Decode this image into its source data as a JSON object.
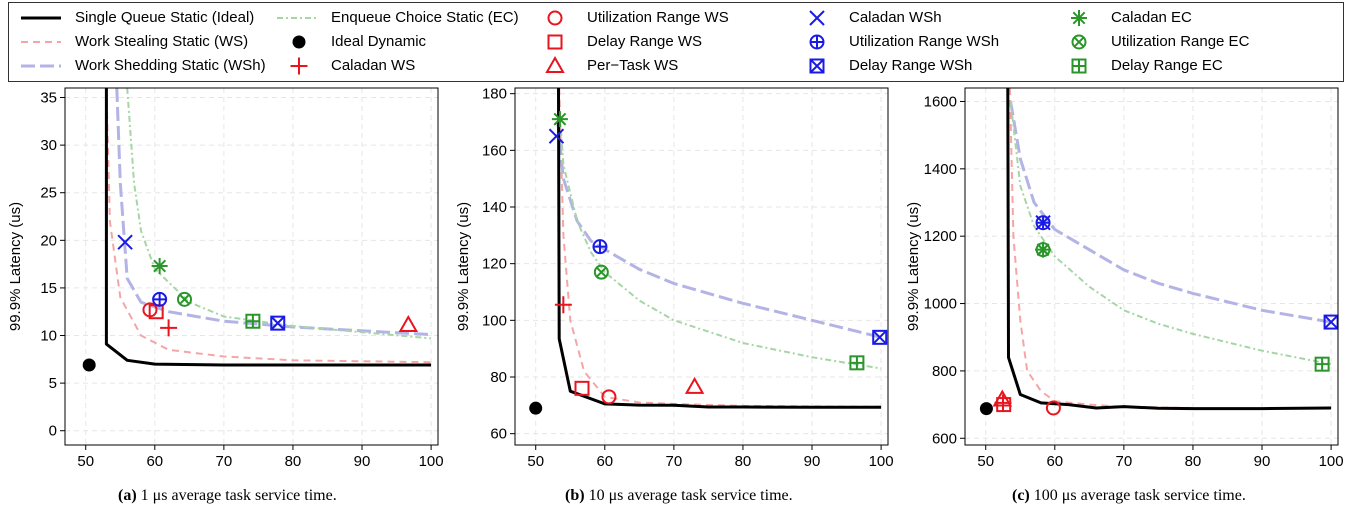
{
  "legend": [
    {
      "label": "Single Queue Static (Ideal)",
      "kind": "line",
      "color": "#000000",
      "dash": "",
      "width": 3
    },
    {
      "label": "Work Stealing Static (WS)",
      "kind": "line",
      "color": "#f4a6a6",
      "dash": "7,5",
      "width": 2
    },
    {
      "label": "Work Shedding Static (WSh)",
      "kind": "line",
      "color": "#b3b3e6",
      "dash": "14,5",
      "width": 3
    },
    {
      "label": "Enqueue Choice Static (EC)",
      "kind": "line",
      "color": "#a6d6a6",
      "dash": "6,3,2,3",
      "width": 2
    },
    {
      "label": "Ideal Dynamic",
      "kind": "marker",
      "marker": "dot",
      "color": "#000000"
    },
    {
      "label": "Caladan WS",
      "kind": "marker",
      "marker": "plus",
      "color": "#e8141e"
    },
    {
      "label": "Utilization Range WS",
      "kind": "marker",
      "marker": "circle",
      "color": "#e8141e"
    },
    {
      "label": "Delay Range WS",
      "kind": "marker",
      "marker": "square",
      "color": "#e8141e"
    },
    {
      "label": "Per−Task WS",
      "kind": "marker",
      "marker": "triangle",
      "color": "#e8141e"
    },
    {
      "label": "Caladan WSh",
      "kind": "marker",
      "marker": "x",
      "color": "#1a1ae6"
    },
    {
      "label": "Utilization Range WSh",
      "kind": "marker",
      "marker": "circleplus",
      "color": "#1a1ae6"
    },
    {
      "label": "Delay Range WSh",
      "kind": "marker",
      "marker": "squarex",
      "color": "#1a1ae6"
    },
    {
      "label": "Caladan EC",
      "kind": "marker",
      "marker": "star",
      "color": "#2a962a"
    },
    {
      "label": "Utilization Range EC",
      "kind": "marker",
      "marker": "circlex",
      "color": "#2a962a"
    },
    {
      "label": "Delay Range EC",
      "kind": "marker",
      "marker": "squareplus",
      "color": "#2a962a"
    }
  ],
  "chart_data": [
    {
      "type": "line",
      "caption_label": "(a)",
      "caption_text": "1 μs average task service time.",
      "xlabel": "CPU Utilization (% of total cores)",
      "ylabel": "99.9% Latency (us)",
      "xlim": [
        47,
        101
      ],
      "ylim": [
        -1.5,
        36
      ],
      "xticks": [
        50,
        60,
        70,
        80,
        90,
        100
      ],
      "yticks": [
        0,
        5,
        10,
        15,
        20,
        25,
        30,
        35
      ],
      "grid": true,
      "series": [
        {
          "name": "Single Queue Static (Ideal)",
          "x": [
            53,
            53,
            56,
            60,
            70,
            80,
            100
          ],
          "y": [
            36,
            9.1,
            7.4,
            7.0,
            6.9,
            6.9,
            6.9
          ]
        },
        {
          "name": "Work Stealing Static (WS)",
          "x": [
            53,
            53.5,
            55,
            58,
            62,
            70,
            80,
            100
          ],
          "y": [
            36,
            22,
            14,
            10,
            8.5,
            7.8,
            7.4,
            7.2
          ]
        },
        {
          "name": "Work Shedding Static (WSh)",
          "x": [
            54.5,
            55,
            56,
            58,
            62,
            70,
            80,
            100
          ],
          "y": [
            36,
            26,
            16,
            13.5,
            12.5,
            11.5,
            10.9,
            10.1
          ]
        },
        {
          "name": "Enqueue Choice Static (EC)",
          "x": [
            56,
            57,
            58,
            60,
            65,
            70,
            80,
            100
          ],
          "y": [
            36,
            26,
            21,
            17,
            13.5,
            12,
            11,
            9.7
          ]
        }
      ],
      "points": [
        {
          "name": "Ideal Dynamic",
          "x": 50.5,
          "y": 6.9
        },
        {
          "name": "Caladan WS",
          "x": 62,
          "y": 10.8
        },
        {
          "name": "Utilization Range WS",
          "x": 59.3,
          "y": 12.7
        },
        {
          "name": "Delay Range WS",
          "x": 60.2,
          "y": 12.5
        },
        {
          "name": "Per−Task WS",
          "x": 96.7,
          "y": 11.1
        },
        {
          "name": "Caladan WSh",
          "x": 55.7,
          "y": 19.8
        },
        {
          "name": "Utilization Range WSh",
          "x": 60.7,
          "y": 13.8
        },
        {
          "name": "Delay Range WSh",
          "x": 77.8,
          "y": 11.3
        },
        {
          "name": "Caladan EC",
          "x": 60.7,
          "y": 17.3
        },
        {
          "name": "Utilization Range EC",
          "x": 64.3,
          "y": 13.8
        },
        {
          "name": "Delay Range EC",
          "x": 74.2,
          "y": 11.5
        }
      ]
    },
    {
      "type": "line",
      "caption_label": "(b)",
      "caption_text": "10 μs average task service time.",
      "xlabel": "CPU Utilization (% of total cores)",
      "ylabel": "99.9% Latency (us)",
      "xlim": [
        47,
        101
      ],
      "ylim": [
        56,
        182
      ],
      "xticks": [
        50,
        60,
        70,
        80,
        90,
        100
      ],
      "yticks": [
        60,
        80,
        100,
        120,
        140,
        160,
        180
      ],
      "grid": true,
      "series": [
        {
          "name": "Single Queue Static (Ideal)",
          "x": [
            53.3,
            53.4,
            55,
            60,
            65,
            70,
            75,
            80,
            90,
            100
          ],
          "y": [
            182,
            93.5,
            75,
            70.5,
            70.1,
            70,
            69.4,
            69.4,
            69.3,
            69.3
          ]
        },
        {
          "name": "Work Stealing Static (WS)",
          "x": [
            53.4,
            54,
            55,
            57,
            60,
            65,
            70,
            80,
            100
          ],
          "y": [
            182,
            130,
            100,
            82,
            73,
            71,
            70.5,
            69.8,
            69.5
          ]
        },
        {
          "name": "Work Shedding Static (WSh)",
          "x": [
            53.2,
            54,
            56,
            58,
            60,
            65,
            70,
            80,
            90,
            100
          ],
          "y": [
            170,
            150,
            135,
            128,
            125,
            118,
            113,
            106,
            100,
            94
          ]
        },
        {
          "name": "Enqueue Choice Static (EC)",
          "x": [
            53.5,
            54,
            56,
            58,
            60,
            65,
            70,
            80,
            90,
            100
          ],
          "y": [
            172,
            155,
            135,
            124,
            117,
            107,
            100,
            92,
            87,
            83
          ]
        }
      ],
      "points": [
        {
          "name": "Ideal Dynamic",
          "x": 50,
          "y": 69
        },
        {
          "name": "Caladan WS",
          "x": 54,
          "y": 105.5
        },
        {
          "name": "Utilization Range WS",
          "x": 60.6,
          "y": 73
        },
        {
          "name": "Delay Range WS",
          "x": 56.7,
          "y": 76
        },
        {
          "name": "Per−Task WS",
          "x": 73,
          "y": 76.5
        },
        {
          "name": "Caladan WSh",
          "x": 53,
          "y": 165
        },
        {
          "name": "Utilization Range WSh",
          "x": 59.3,
          "y": 126
        },
        {
          "name": "Delay Range WSh",
          "x": 99.8,
          "y": 94
        },
        {
          "name": "Caladan EC",
          "x": 53.5,
          "y": 171
        },
        {
          "name": "Utilization Range EC",
          "x": 59.5,
          "y": 117
        },
        {
          "name": "Delay Range EC",
          "x": 96.5,
          "y": 85
        }
      ]
    },
    {
      "type": "line",
      "caption_label": "(c)",
      "caption_text": "100 μs average task service time.",
      "xlabel": "CPU Utilization (% of total cores)",
      "ylabel": "99.9% Latency (us)",
      "xlim": [
        47,
        101
      ],
      "ylim": [
        580,
        1640
      ],
      "xticks": [
        50,
        60,
        70,
        80,
        90,
        100
      ],
      "yticks": [
        600,
        800,
        1000,
        1200,
        1400,
        1600
      ],
      "grid": true,
      "series": [
        {
          "name": "Single Queue Static (Ideal)",
          "x": [
            53.2,
            53.3,
            55,
            58,
            62,
            66,
            70,
            75,
            80,
            90,
            100
          ],
          "y": [
            1640,
            840,
            730,
            705,
            700,
            690,
            694,
            689,
            688,
            688,
            690
          ]
        },
        {
          "name": "Work Stealing Static (WS)",
          "x": [
            53.5,
            54,
            55,
            56,
            58,
            60,
            65,
            70,
            80
          ],
          "y": [
            1640,
            1200,
            950,
            800,
            740,
            710,
            700,
            693,
            690
          ]
        },
        {
          "name": "Work Shedding Static (WSh)",
          "x": [
            53.6,
            55,
            57,
            60,
            65,
            70,
            75,
            80,
            90,
            100
          ],
          "y": [
            1600,
            1430,
            1300,
            1220,
            1160,
            1100,
            1060,
            1030,
            980,
            945
          ]
        },
        {
          "name": "Enqueue Choice Static (EC)",
          "x": [
            53.6,
            55,
            57,
            60,
            65,
            70,
            75,
            80,
            90,
            100
          ],
          "y": [
            1600,
            1350,
            1230,
            1140,
            1050,
            980,
            940,
            910,
            860,
            820
          ]
        }
      ],
      "points": [
        {
          "name": "Ideal Dynamic",
          "x": 50.1,
          "y": 688
        },
        {
          "name": "Caladan WS",
          "x": 52.5,
          "y": 705
        },
        {
          "name": "Utilization Range WS",
          "x": 59.8,
          "y": 690
        },
        {
          "name": "Delay Range WS",
          "x": 52.6,
          "y": 700
        },
        {
          "name": "Per−Task WS",
          "x": 52.4,
          "y": 715
        },
        {
          "name": "Caladan WSh",
          "x": 58.3,
          "y": 1240
        },
        {
          "name": "Utilization Range WSh",
          "x": 58.3,
          "y": 1240
        },
        {
          "name": "Delay Range WSh",
          "x": 100,
          "y": 945
        },
        {
          "name": "Caladan EC",
          "x": 58.3,
          "y": 1160
        },
        {
          "name": "Utilization Range EC",
          "x": 58.3,
          "y": 1160
        },
        {
          "name": "Delay Range EC",
          "x": 98.7,
          "y": 820
        }
      ]
    }
  ]
}
